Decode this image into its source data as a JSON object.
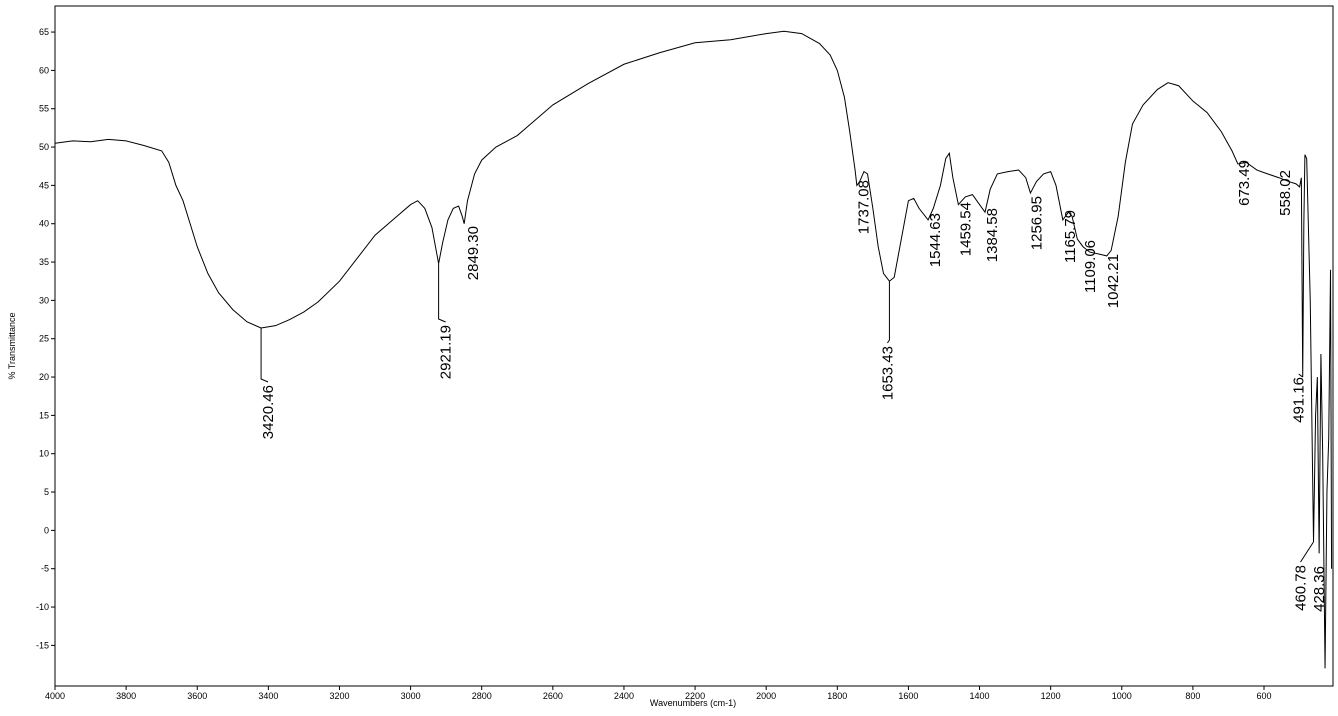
{
  "chart_data": {
    "type": "line",
    "xlabel": "Wavenumbers (cm-1)",
    "ylabel": "% Transmittance",
    "xlim": [
      4000,
      406
    ],
    "ylim": [
      -20.3,
      68.4
    ],
    "xticks": [
      4000,
      3800,
      3600,
      3400,
      3200,
      3000,
      2800,
      2600,
      2400,
      2200,
      2000,
      1800,
      1600,
      1400,
      1200,
      1000,
      800,
      600
    ],
    "yticks": [
      -15,
      -10,
      -5,
      0,
      5,
      10,
      15,
      20,
      25,
      30,
      35,
      40,
      45,
      50,
      55,
      60,
      65
    ],
    "x": [
      4000,
      3950,
      3900,
      3850,
      3800,
      3750,
      3700,
      3680,
      3660,
      3640,
      3620,
      3600,
      3570,
      3540,
      3500,
      3460,
      3420.46,
      3380,
      3340,
      3300,
      3260,
      3200,
      3150,
      3100,
      3050,
      3000,
      2980,
      2960,
      2940,
      2930,
      2921.19,
      2910,
      2895,
      2880,
      2865,
      2855,
      2849.3,
      2840,
      2820,
      2800,
      2760,
      2700,
      2600,
      2500,
      2400,
      2300,
      2200,
      2100,
      2000,
      1950,
      1900,
      1850,
      1820,
      1800,
      1780,
      1765,
      1750,
      1745,
      1737.08,
      1725,
      1715,
      1700,
      1685,
      1670,
      1653.43,
      1640,
      1620,
      1600,
      1585,
      1570,
      1544.63,
      1530,
      1510,
      1495,
      1485,
      1475,
      1459.54,
      1440,
      1420,
      1400,
      1384.58,
      1370,
      1350,
      1320,
      1290,
      1270,
      1256.95,
      1240,
      1220,
      1200,
      1185,
      1165.79,
      1150,
      1140,
      1125,
      1109.06,
      1090,
      1060,
      1042.21,
      1030,
      1010,
      990,
      970,
      940,
      900,
      870,
      840,
      800,
      760,
      720,
      690,
      673.49,
      650,
      620,
      590,
      558.02,
      530,
      510,
      500,
      495,
      491.16,
      488,
      485,
      480,
      470,
      460.78,
      455,
      450,
      445,
      440,
      435,
      428.36,
      423,
      418,
      413,
      410
    ],
    "series": [
      {
        "color": "#000000",
        "values": [
          50.5,
          50.8,
          50.7,
          51.0,
          50.8,
          50.2,
          49.5,
          48,
          45,
          43,
          40,
          37,
          33.5,
          31,
          28.8,
          27.2,
          26.4,
          26.7,
          27.5,
          28.5,
          29.8,
          32.5,
          35.5,
          38.5,
          40.5,
          42.5,
          43,
          42,
          39.5,
          37,
          34.8,
          37.5,
          40.5,
          42,
          42.3,
          41,
          40,
          43,
          46.5,
          48.3,
          50,
          51.5,
          55.5,
          58.3,
          60.8,
          62.3,
          63.6,
          64.0,
          64.8,
          65.1,
          64.8,
          63.5,
          62,
          60,
          56.5,
          52,
          47,
          45,
          45.5,
          46.8,
          46.5,
          42,
          37,
          33.5,
          32.5,
          33,
          38,
          43,
          43.3,
          42,
          40.5,
          42,
          45,
          48.5,
          49.2,
          46,
          42.5,
          43.5,
          43.8,
          42.5,
          41.5,
          44.5,
          46.5,
          46.8,
          47,
          46,
          44.0,
          45.5,
          46.5,
          46.8,
          45,
          40.5,
          41.5,
          41,
          38,
          37,
          36.3,
          36.0,
          35.8,
          36.5,
          41,
          48,
          53,
          55.5,
          57.5,
          58.4,
          58.0,
          56,
          54.5,
          52,
          49.5,
          47.8,
          48,
          47,
          46.5,
          46.0,
          45.5,
          45.2,
          44.8,
          46,
          20,
          40,
          49,
          48.5,
          30,
          -1.5,
          15,
          20,
          -3,
          23,
          10,
          -18,
          5,
          12,
          34,
          -5
        ]
      }
    ],
    "peaks": [
      {
        "value": 3420.46,
        "label": "3420.46"
      },
      {
        "value": 2921.19,
        "label": "2921.19"
      },
      {
        "value": 2849.3,
        "label": "2849.30"
      },
      {
        "value": 1737.08,
        "label": "1737.08"
      },
      {
        "value": 1653.43,
        "label": "1653.43"
      },
      {
        "value": 1544.63,
        "label": "1544.63"
      },
      {
        "value": 1459.54,
        "label": "1459.54"
      },
      {
        "value": 1384.58,
        "label": "1384.58"
      },
      {
        "value": 1256.95,
        "label": "1256.95"
      },
      {
        "value": 1165.79,
        "label": "1165.79"
      },
      {
        "value": 1109.06,
        "label": "1109.06"
      },
      {
        "value": 1042.21,
        "label": "1042.21"
      },
      {
        "value": 673.49,
        "label": "673.49"
      },
      {
        "value": 558.02,
        "label": "558.02"
      },
      {
        "value": 491.16,
        "label": "491.16"
      },
      {
        "value": 460.78,
        "label": "460.78"
      },
      {
        "value": 428.36,
        "label": "428.36"
      }
    ]
  }
}
